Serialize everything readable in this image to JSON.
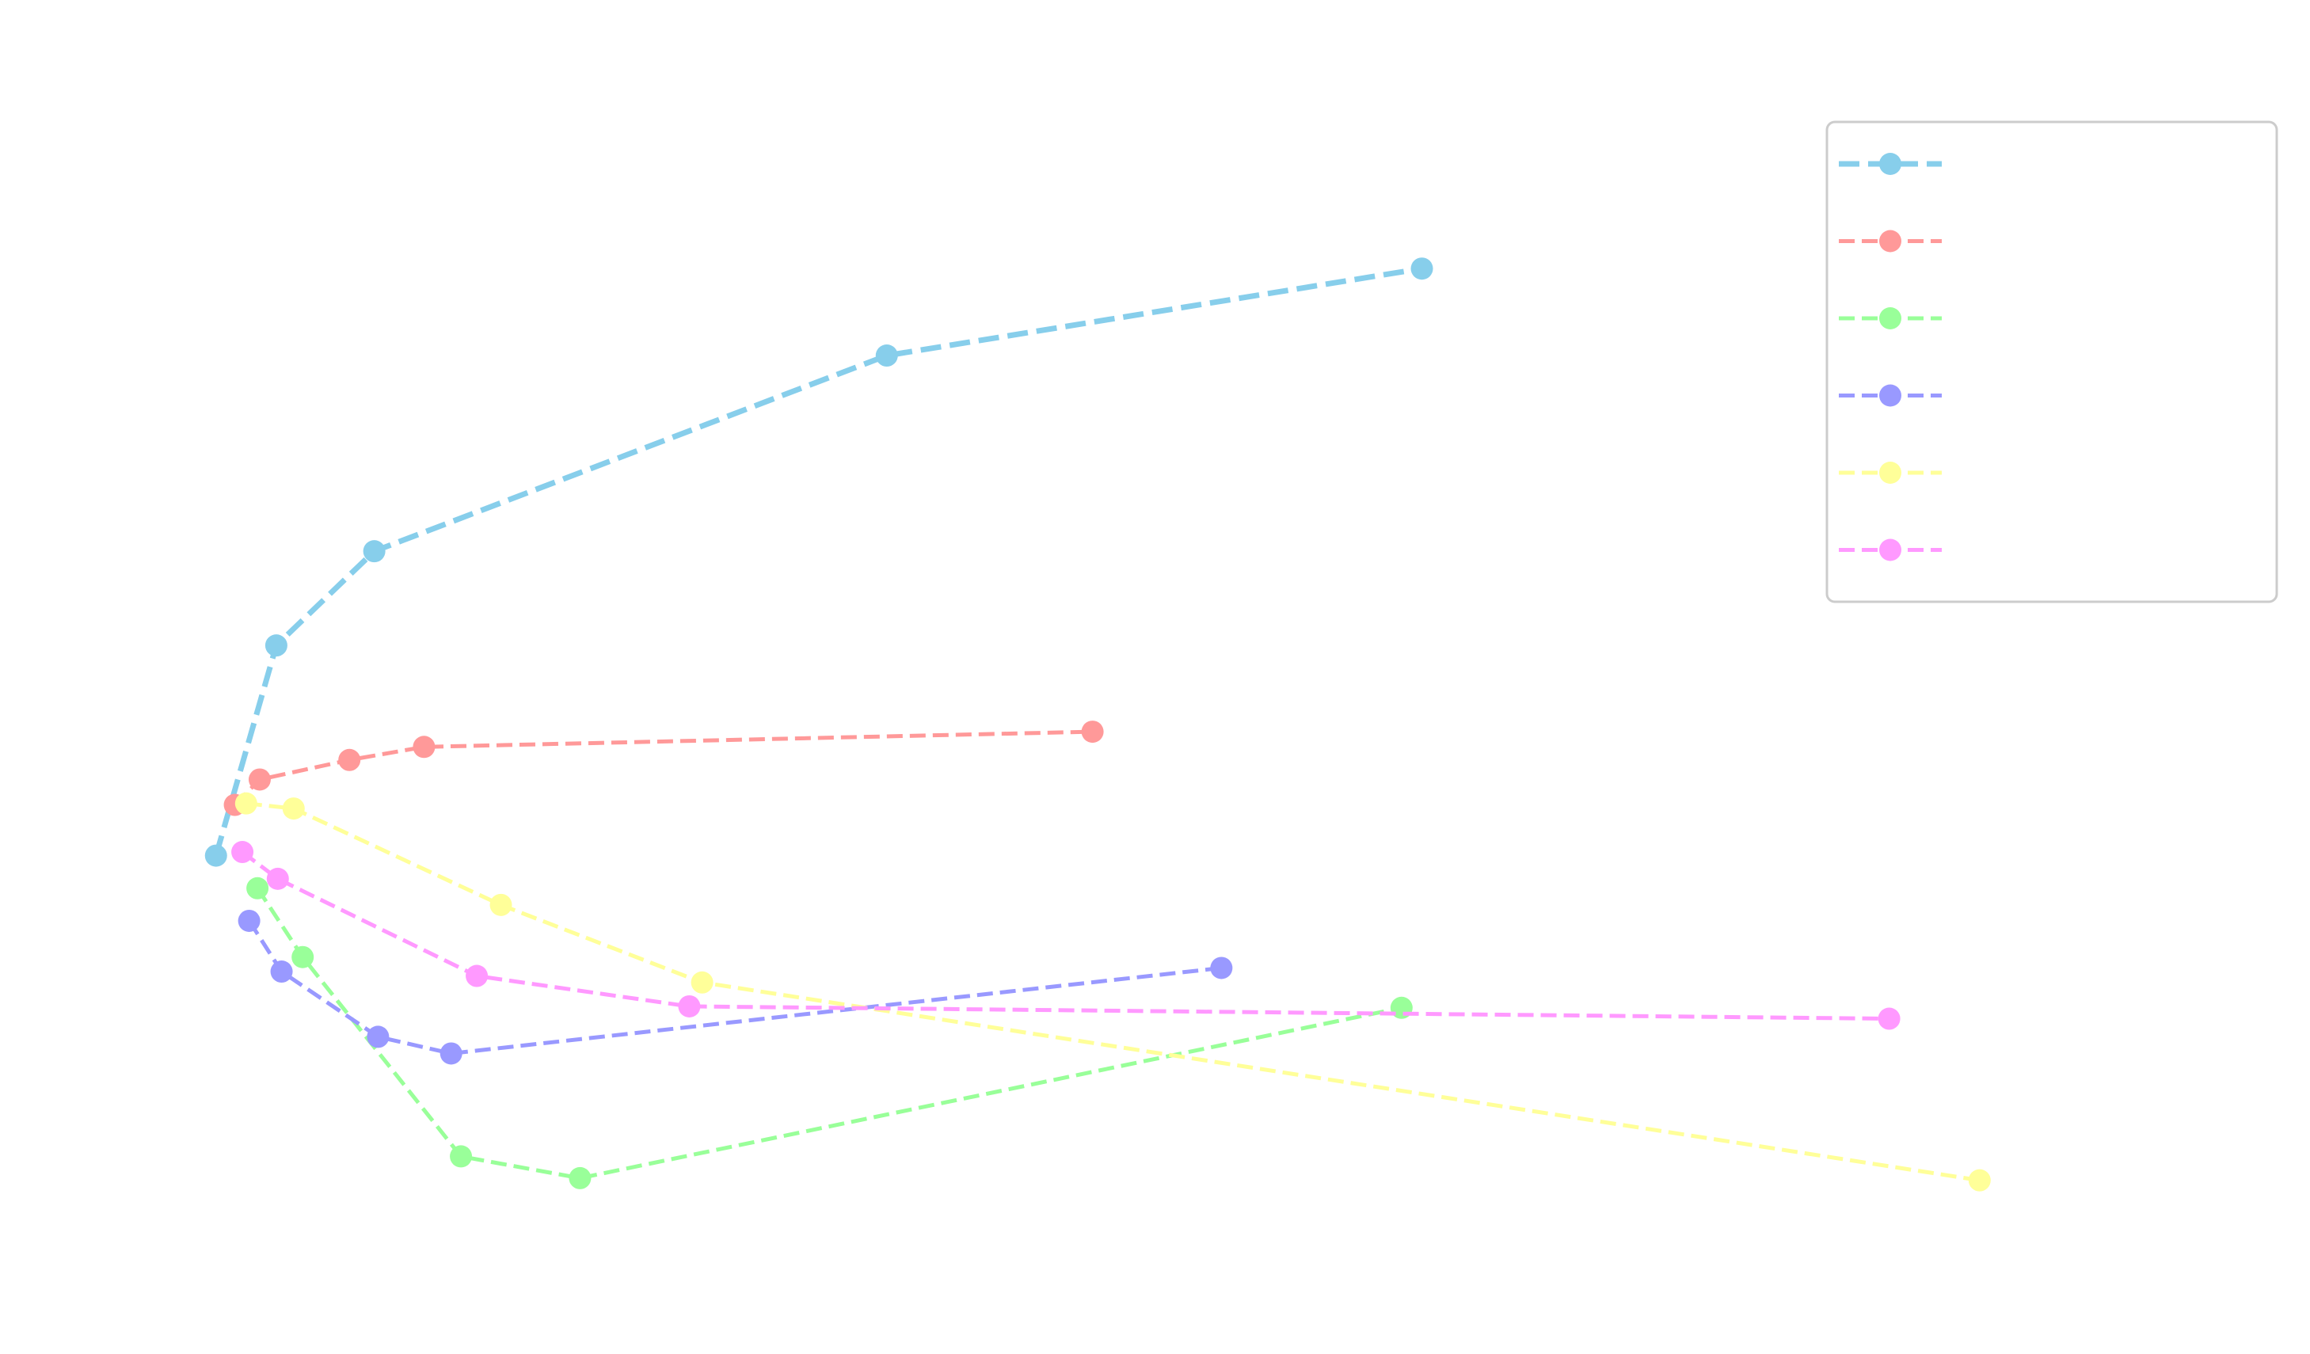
{
  "chart_data": {
    "type": "line",
    "title": "",
    "xlabel": "",
    "ylabel": "",
    "xlim": [
      -0.15,
      2.75
    ],
    "ylim": [
      -0.55,
      1.15
    ],
    "grid": false,
    "legend": {
      "placement": "top-right"
    },
    "series": [
      {
        "color": "#87ceeb",
        "style": "dashed",
        "marker": "circle",
        "points": [
          [
            0.0,
            0.0
          ],
          [
            0.08,
            0.29
          ],
          [
            0.21,
            0.42
          ],
          [
            0.89,
            0.69
          ],
          [
            1.6,
            0.81
          ]
        ]
      },
      {
        "color": "#ff9999",
        "style": "dashed",
        "marker": "circle",
        "points": [
          [
            0.025,
            0.07
          ],
          [
            0.058,
            0.105
          ],
          [
            0.177,
            0.132
          ],
          [
            0.276,
            0.15
          ],
          [
            1.163,
            0.171
          ]
        ]
      },
      {
        "color": "#99ff99",
        "style": "dashed",
        "marker": "circle",
        "points": [
          [
            0.055,
            -0.045
          ],
          [
            0.115,
            -0.14
          ],
          [
            0.325,
            -0.415
          ],
          [
            0.483,
            -0.445
          ],
          [
            1.573,
            -0.21
          ]
        ]
      },
      {
        "color": "#9999ff",
        "style": "dashed",
        "marker": "circle",
        "points": [
          [
            0.044,
            -0.09
          ],
          [
            0.087,
            -0.16
          ],
          [
            0.215,
            -0.25
          ],
          [
            0.312,
            -0.273
          ],
          [
            1.334,
            -0.155
          ]
        ]
      },
      {
        "color": "#ffff99",
        "style": "dashed",
        "marker": "circle",
        "points": [
          [
            0.04,
            0.072
          ],
          [
            0.103,
            0.065
          ],
          [
            0.378,
            -0.068
          ],
          [
            0.645,
            -0.175
          ],
          [
            2.34,
            -0.448
          ]
        ]
      },
      {
        "color": "#ff99ff",
        "style": "dashed",
        "marker": "circle",
        "points": [
          [
            0.035,
            0.005
          ],
          [
            0.082,
            -0.032
          ],
          [
            0.346,
            -0.166
          ],
          [
            0.628,
            -0.208
          ],
          [
            2.22,
            -0.225
          ]
        ]
      }
    ]
  }
}
